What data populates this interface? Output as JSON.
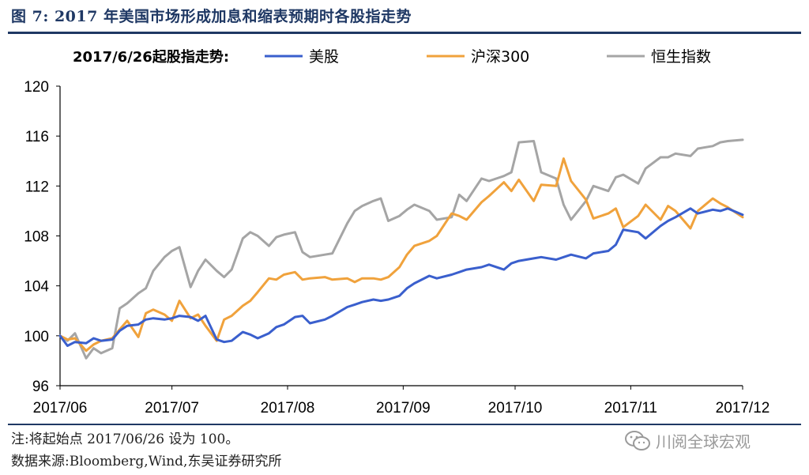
{
  "figure": {
    "title": "图 7: 2017 年美国市场形成加息和缩表预期时各股指走势",
    "note": "注:将起始点 2017/06/26 设为 100。",
    "source": "数据来源:Bloomberg,Wind,东吴证券研究所",
    "watermark": "川阅全球宏观",
    "watermark_icon": "wechat-icon"
  },
  "chart_data": {
    "type": "line",
    "title": "2017/6/26起股指走势:",
    "xlabel": "",
    "ylabel": "",
    "ylim": [
      96,
      120
    ],
    "yticks": [
      96,
      100,
      104,
      108,
      112,
      116,
      120
    ],
    "x_tick_labels": [
      "2017/06",
      "2017/07",
      "2017/08",
      "2017/09",
      "2017/10",
      "2017/11",
      "2017/12"
    ],
    "x_tick_dates": [
      "2017-06-26",
      "2017-07-26",
      "2017-08-26",
      "2017-09-26",
      "2017-10-26",
      "2017-11-26",
      "2017-12-26"
    ],
    "grid": false,
    "legend": "top",
    "series": [
      {
        "name": "美股",
        "color": "#3a5fcd",
        "dates": [
          "2017-06-26",
          "2017-06-28",
          "2017-06-30",
          "2017-07-03",
          "2017-07-05",
          "2017-07-07",
          "2017-07-10",
          "2017-07-12",
          "2017-07-14",
          "2017-07-17",
          "2017-07-19",
          "2017-07-21",
          "2017-07-24",
          "2017-07-26",
          "2017-07-28",
          "2017-07-31",
          "2017-08-02",
          "2017-08-04",
          "2017-08-07",
          "2017-08-09",
          "2017-08-11",
          "2017-08-14",
          "2017-08-16",
          "2017-08-18",
          "2017-08-21",
          "2017-08-23",
          "2017-08-25",
          "2017-08-28",
          "2017-08-30",
          "2017-09-01",
          "2017-09-05",
          "2017-09-07",
          "2017-09-11",
          "2017-09-13",
          "2017-09-15",
          "2017-09-18",
          "2017-09-20",
          "2017-09-22",
          "2017-09-25",
          "2017-09-27",
          "2017-09-29",
          "2017-10-03",
          "2017-10-05",
          "2017-10-09",
          "2017-10-11",
          "2017-10-13",
          "2017-10-17",
          "2017-10-19",
          "2017-10-23",
          "2017-10-25",
          "2017-10-27",
          "2017-10-31",
          "2017-11-02",
          "2017-11-06",
          "2017-11-08",
          "2017-11-10",
          "2017-11-14",
          "2017-11-16",
          "2017-11-20",
          "2017-11-22",
          "2017-11-24",
          "2017-11-28",
          "2017-11-30",
          "2017-12-04",
          "2017-12-06",
          "2017-12-08",
          "2017-12-12",
          "2017-12-14",
          "2017-12-18",
          "2017-12-20",
          "2017-12-22",
          "2017-12-26"
        ],
        "values": [
          100.0,
          99.2,
          99.5,
          99.4,
          99.8,
          99.6,
          99.7,
          100.4,
          100.8,
          100.9,
          101.3,
          101.4,
          101.3,
          101.4,
          101.6,
          101.5,
          101.2,
          101.6,
          99.7,
          99.5,
          99.6,
          100.3,
          100.1,
          99.8,
          100.2,
          100.7,
          100.9,
          101.5,
          101.6,
          101.0,
          101.3,
          101.6,
          102.3,
          102.5,
          102.7,
          102.9,
          102.8,
          102.9,
          103.2,
          103.8,
          104.2,
          104.8,
          104.6,
          104.9,
          105.1,
          105.3,
          105.5,
          105.7,
          105.3,
          105.8,
          106.0,
          106.2,
          106.3,
          106.1,
          106.3,
          106.5,
          106.2,
          106.6,
          106.8,
          107.3,
          108.5,
          108.3,
          107.8,
          108.8,
          109.2,
          109.5,
          110.2,
          109.8,
          110.1,
          110.0,
          110.2,
          109.7
        ]
      },
      {
        "name": "沪深300",
        "color": "#f0a23c",
        "dates": [
          "2017-06-26",
          "2017-06-28",
          "2017-06-30",
          "2017-07-03",
          "2017-07-05",
          "2017-07-07",
          "2017-07-10",
          "2017-07-12",
          "2017-07-14",
          "2017-07-17",
          "2017-07-19",
          "2017-07-21",
          "2017-07-24",
          "2017-07-26",
          "2017-07-28",
          "2017-07-31",
          "2017-08-02",
          "2017-08-04",
          "2017-08-07",
          "2017-08-09",
          "2017-08-11",
          "2017-08-14",
          "2017-08-16",
          "2017-08-18",
          "2017-08-21",
          "2017-08-23",
          "2017-08-25",
          "2017-08-28",
          "2017-08-30",
          "2017-09-01",
          "2017-09-05",
          "2017-09-07",
          "2017-09-11",
          "2017-09-13",
          "2017-09-15",
          "2017-09-18",
          "2017-09-20",
          "2017-09-22",
          "2017-09-25",
          "2017-09-27",
          "2017-09-29",
          "2017-10-03",
          "2017-10-05",
          "2017-10-09",
          "2017-10-11",
          "2017-10-13",
          "2017-10-17",
          "2017-10-19",
          "2017-10-23",
          "2017-10-25",
          "2017-10-27",
          "2017-10-31",
          "2017-11-02",
          "2017-11-06",
          "2017-11-08",
          "2017-11-10",
          "2017-11-14",
          "2017-11-16",
          "2017-11-20",
          "2017-11-22",
          "2017-11-24",
          "2017-11-28",
          "2017-11-30",
          "2017-12-04",
          "2017-12-06",
          "2017-12-08",
          "2017-12-12",
          "2017-12-14",
          "2017-12-18",
          "2017-12-20",
          "2017-12-22",
          "2017-12-26"
        ],
        "values": [
          100.0,
          99.7,
          99.8,
          98.8,
          99.3,
          99.6,
          99.8,
          100.5,
          101.2,
          99.9,
          101.8,
          102.1,
          101.7,
          101.2,
          102.8,
          101.4,
          101.7,
          100.8,
          99.6,
          101.3,
          101.6,
          102.4,
          102.8,
          103.5,
          104.6,
          104.5,
          104.9,
          105.1,
          104.5,
          104.6,
          104.7,
          104.5,
          104.6,
          104.3,
          104.6,
          104.6,
          104.5,
          104.7,
          105.5,
          106.5,
          107.2,
          107.6,
          108.0,
          109.8,
          109.6,
          109.3,
          110.7,
          111.2,
          112.3,
          111.6,
          112.5,
          110.8,
          112.1,
          112.0,
          114.2,
          112.4,
          110.9,
          109.4,
          109.8,
          110.2,
          108.7,
          109.6,
          110.5,
          109.3,
          110.4,
          110.0,
          108.6,
          110.0,
          111.0,
          110.6,
          110.3,
          109.5
        ]
      },
      {
        "name": "恒生指数",
        "color": "#a5a5a5",
        "dates": [
          "2017-06-26",
          "2017-06-28",
          "2017-06-30",
          "2017-07-03",
          "2017-07-05",
          "2017-07-07",
          "2017-07-10",
          "2017-07-12",
          "2017-07-14",
          "2017-07-17",
          "2017-07-19",
          "2017-07-21",
          "2017-07-24",
          "2017-07-26",
          "2017-07-28",
          "2017-07-31",
          "2017-08-02",
          "2017-08-04",
          "2017-08-07",
          "2017-08-09",
          "2017-08-11",
          "2017-08-14",
          "2017-08-16",
          "2017-08-18",
          "2017-08-21",
          "2017-08-23",
          "2017-08-25",
          "2017-08-28",
          "2017-08-30",
          "2017-09-01",
          "2017-09-05",
          "2017-09-07",
          "2017-09-11",
          "2017-09-13",
          "2017-09-15",
          "2017-09-18",
          "2017-09-20",
          "2017-09-22",
          "2017-09-25",
          "2017-09-27",
          "2017-09-29",
          "2017-10-03",
          "2017-10-05",
          "2017-10-09",
          "2017-10-11",
          "2017-10-13",
          "2017-10-17",
          "2017-10-19",
          "2017-10-23",
          "2017-10-25",
          "2017-10-27",
          "2017-10-31",
          "2017-11-02",
          "2017-11-06",
          "2017-11-08",
          "2017-11-10",
          "2017-11-14",
          "2017-11-16",
          "2017-11-20",
          "2017-11-22",
          "2017-11-24",
          "2017-11-28",
          "2017-11-30",
          "2017-12-04",
          "2017-12-06",
          "2017-12-08",
          "2017-12-12",
          "2017-12-14",
          "2017-12-18",
          "2017-12-20",
          "2017-12-22",
          "2017-12-26"
        ],
        "values": [
          100.0,
          99.6,
          100.2,
          98.2,
          99.0,
          98.6,
          99.0,
          102.2,
          102.6,
          103.4,
          103.8,
          105.2,
          106.3,
          106.8,
          107.1,
          103.9,
          105.2,
          106.1,
          105.2,
          104.7,
          105.3,
          107.8,
          108.3,
          108.0,
          107.2,
          107.9,
          108.1,
          108.3,
          106.7,
          106.3,
          106.5,
          106.6,
          109.0,
          110.0,
          110.4,
          110.8,
          111.0,
          109.2,
          109.6,
          110.1,
          110.5,
          110.0,
          109.3,
          109.5,
          111.3,
          110.8,
          112.6,
          112.4,
          112.8,
          113.1,
          115.5,
          115.6,
          113.1,
          112.6,
          110.5,
          109.3,
          110.8,
          112.0,
          111.6,
          112.7,
          112.9,
          112.2,
          113.4,
          114.3,
          114.3,
          114.6,
          114.4,
          115.0,
          115.2,
          115.5,
          115.6,
          115.7
        ]
      }
    ]
  }
}
